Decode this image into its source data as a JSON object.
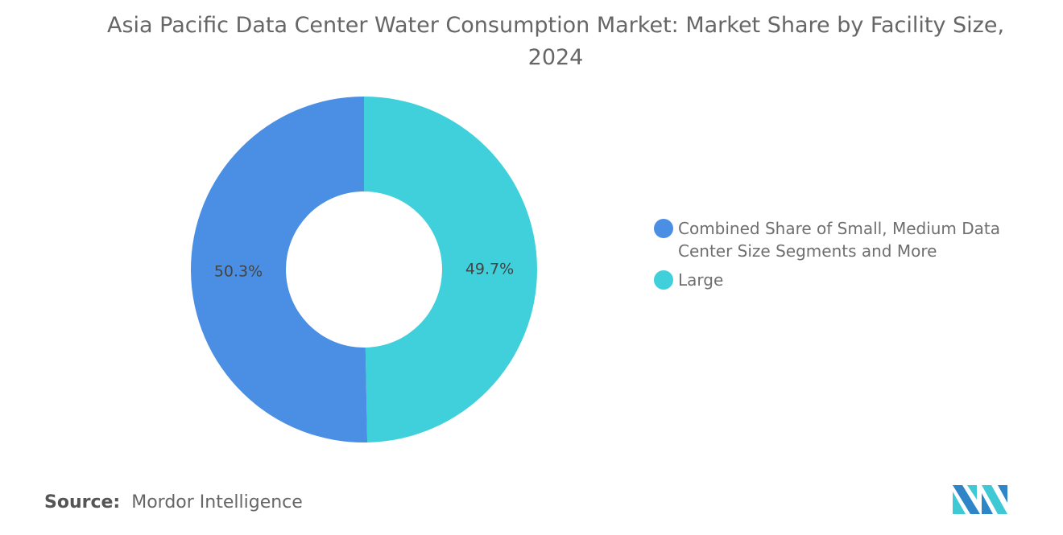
{
  "chart_data": {
    "type": "pie",
    "variant": "donut",
    "title": "Asia Pacific Data Center Water Consumption Market: Market Share by Facility Size, 2024",
    "slices": [
      {
        "label": "Large",
        "value": 49.7,
        "display": "49.7%",
        "color": "#3FD0DB"
      },
      {
        "label": "Combined Share of Small, Medium Data Center Size Segments and More",
        "value": 50.3,
        "display": "50.3%",
        "color": "#4A8FE3"
      }
    ],
    "legend_order": [
      1,
      0
    ],
    "legend_placement": "right"
  },
  "source": {
    "label": "Source:",
    "text": "Mordor Intelligence"
  },
  "logo": "Mordor Intelligence"
}
